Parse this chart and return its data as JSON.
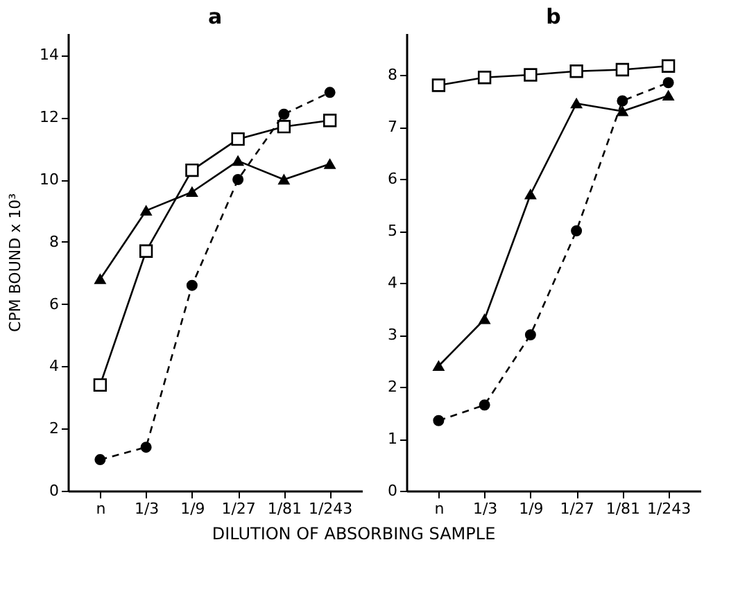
{
  "chart_data": [
    {
      "type": "line",
      "title": "a",
      "ylabel": "CPM  BOUND x 10³",
      "xlabel": "DILUTION  OF  ABSORBING  SAMPLE",
      "categories": [
        "n",
        "1/3",
        "1/9",
        "1/27",
        "1/81",
        "1/243"
      ],
      "ylim": [
        0,
        14.7
      ],
      "yticks": [
        0,
        2,
        4,
        6,
        8,
        10,
        12,
        14
      ],
      "grid": false,
      "series": [
        {
          "color": "#000000",
          "marker": "triangle",
          "line_style": "solid",
          "values": [
            6.8,
            9.0,
            9.6,
            10.6,
            10.0,
            10.5
          ]
        },
        {
          "color": "#000000",
          "marker": "square",
          "line_style": "solid",
          "values": [
            3.4,
            7.7,
            10.3,
            11.3,
            11.7,
            11.9
          ]
        },
        {
          "color": "#000000",
          "marker": "circle",
          "line_style": "dashed",
          "values": [
            1.0,
            1.4,
            6.6,
            10.0,
            12.1,
            12.8
          ]
        }
      ]
    },
    {
      "type": "line",
      "title": "b",
      "categories": [
        "n",
        "1/3",
        "1/9",
        "1/27",
        "1/81",
        "1/243"
      ],
      "ylim": [
        0,
        8.8
      ],
      "yticks": [
        0,
        1,
        2,
        3,
        4,
        5,
        6,
        7,
        8
      ],
      "grid": false,
      "series": [
        {
          "color": "#000000",
          "marker": "square",
          "line_style": "solid",
          "values": [
            7.8,
            7.95,
            8.0,
            8.07,
            8.1,
            8.17
          ]
        },
        {
          "color": "#000000",
          "marker": "triangle",
          "line_style": "solid",
          "values": [
            2.4,
            3.3,
            5.7,
            7.45,
            7.3,
            7.6
          ]
        },
        {
          "color": "#000000",
          "marker": "circle",
          "line_style": "dashed",
          "values": [
            1.35,
            1.65,
            3.0,
            5.0,
            7.5,
            7.85
          ]
        }
      ]
    }
  ]
}
